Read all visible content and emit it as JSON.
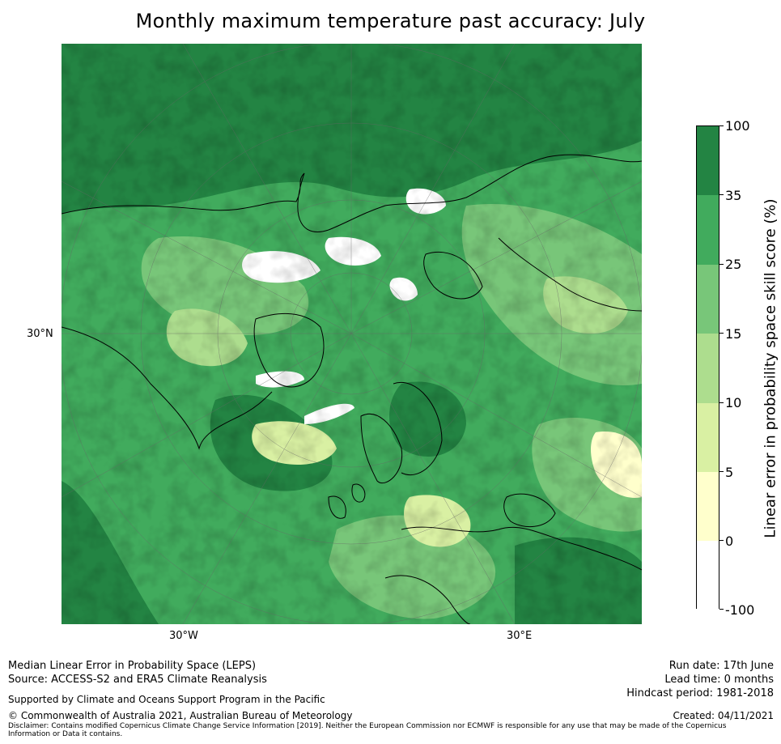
{
  "title": "Monthly maximum temperature past accuracy: July",
  "axes": {
    "lat_label": "30°N",
    "lon_labels": [
      "30°W",
      "30°E"
    ]
  },
  "colorbar": {
    "title": "Linear error in probability space skill score (%)",
    "tick_labels": [
      "100",
      "35",
      "25",
      "15",
      "10",
      "5",
      "0",
      "-100"
    ],
    "bins": [
      {
        "from": 35,
        "to": 100,
        "color": "#238443"
      },
      {
        "from": 25,
        "to": 35,
        "color": "#41ab5d"
      },
      {
        "from": 15,
        "to": 25,
        "color": "#78c679"
      },
      {
        "from": 10,
        "to": 15,
        "color": "#addd8e"
      },
      {
        "from": 5,
        "to": 10,
        "color": "#d9f0a3"
      },
      {
        "from": 0,
        "to": 5,
        "color": "#ffffcc"
      },
      {
        "from": -100,
        "to": 0,
        "color": "#ffffff"
      }
    ]
  },
  "footer": {
    "product": "Median Linear Error in Probability Space (LEPS)",
    "source": "Source: ACCESS-S2 and ERA5 Climate Reanalysis",
    "support": "Supported by Climate and Oceans Support Program in the Pacific",
    "copyright": "© Commonwealth of Australia 2021, Australian Bureau of Meteorology",
    "disclaimer": "Disclaimer: Contains modified Copernicus Climate Change Service Information [2019]. Neither the European Commission nor ECMWF is responsible for any use that may be made of the Copernicus Information or Data it contains.",
    "run_date": "Run date: 17th June",
    "lead_time": "Lead time: 0 months",
    "hindcast": "Hindcast period: 1981-2018",
    "created": "Created: 04/11/2021"
  }
}
